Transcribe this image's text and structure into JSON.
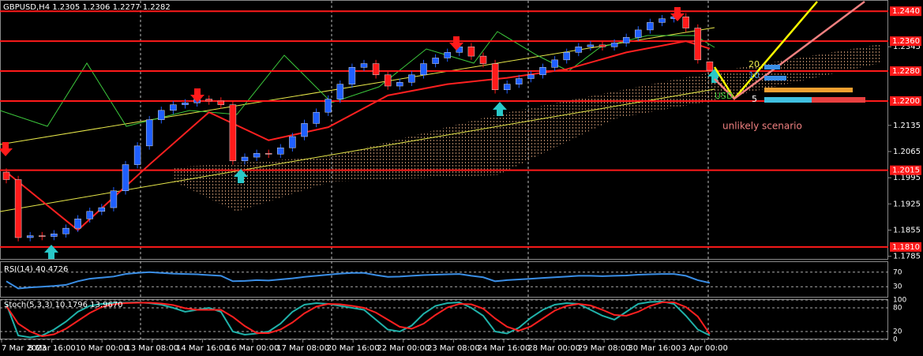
{
  "chart_data": [
    {
      "type": "candlestick",
      "title": "GBPUSD,H4  1.2305 1.2306 1.2277 1.2282",
      "open": [
        1.201,
        1.199,
        1.1835,
        1.184,
        1.1838,
        1.1845,
        1.186,
        1.1885,
        1.1905,
        1.1915,
        1.196,
        1.203,
        1.208,
        1.215,
        1.2175,
        1.219,
        1.2195,
        1.2205,
        1.22,
        1.219,
        1.204,
        1.205,
        1.206,
        1.2058,
        1.2075,
        1.2105,
        1.214,
        1.217,
        1.2205,
        1.2245,
        1.229,
        1.23,
        1.227,
        1.224,
        1.225,
        1.227,
        1.23,
        1.2315,
        1.233,
        1.2345,
        1.232,
        1.23,
        1.223,
        1.2245,
        1.226,
        1.227,
        1.229,
        1.231,
        1.233,
        1.2345,
        1.235,
        1.2345,
        1.2355,
        1.237,
        1.239,
        1.241,
        1.242,
        1.2425,
        1.2395,
        1.2305
      ],
      "high": [
        1.202,
        1.2,
        1.185,
        1.185,
        1.1855,
        1.187,
        1.1895,
        1.1915,
        1.1925,
        1.197,
        1.204,
        1.209,
        1.216,
        1.2185,
        1.22,
        1.2205,
        1.2215,
        1.2215,
        1.221,
        1.22,
        1.206,
        1.207,
        1.207,
        1.2085,
        1.2115,
        1.215,
        1.218,
        1.2215,
        1.2255,
        1.23,
        1.231,
        1.231,
        1.228,
        1.226,
        1.228,
        1.231,
        1.2325,
        1.234,
        1.2355,
        1.2355,
        1.233,
        1.231,
        1.2255,
        1.227,
        1.228,
        1.23,
        1.232,
        1.234,
        1.2355,
        1.236,
        1.236,
        1.2365,
        1.238,
        1.24,
        1.242,
        1.243,
        1.2435,
        1.2435,
        1.2405,
        1.2306
      ],
      "low": [
        1.198,
        1.1825,
        1.1825,
        1.1828,
        1.1828,
        1.1835,
        1.185,
        1.1875,
        1.1895,
        1.1905,
        1.195,
        1.202,
        1.207,
        1.214,
        1.2165,
        1.218,
        1.2185,
        1.219,
        1.218,
        1.203,
        1.203,
        1.204,
        1.2048,
        1.2048,
        1.2065,
        1.2095,
        1.213,
        1.216,
        1.2195,
        1.2235,
        1.228,
        1.226,
        1.223,
        1.223,
        1.224,
        1.226,
        1.229,
        1.2305,
        1.232,
        1.231,
        1.229,
        1.222,
        1.222,
        1.2235,
        1.225,
        1.226,
        1.228,
        1.23,
        1.232,
        1.2335,
        1.2335,
        1.2335,
        1.2345,
        1.236,
        1.238,
        1.24,
        1.241,
        1.2385,
        1.23,
        1.2277
      ],
      "close": [
        1.199,
        1.1835,
        1.184,
        1.1838,
        1.1845,
        1.186,
        1.1885,
        1.1905,
        1.1915,
        1.196,
        1.203,
        1.208,
        1.215,
        1.2175,
        1.219,
        1.2195,
        1.2205,
        1.22,
        1.219,
        1.204,
        1.205,
        1.206,
        1.2058,
        1.2075,
        1.2105,
        1.214,
        1.217,
        1.2205,
        1.2245,
        1.229,
        1.23,
        1.227,
        1.224,
        1.225,
        1.227,
        1.23,
        1.2315,
        1.233,
        1.2345,
        1.232,
        1.23,
        1.223,
        1.2245,
        1.226,
        1.227,
        1.229,
        1.231,
        1.233,
        1.2345,
        1.235,
        1.2345,
        1.2355,
        1.237,
        1.239,
        1.241,
        1.242,
        1.2425,
        1.2395,
        1.231,
        1.2282
      ],
      "up_color": "#1f5fff",
      "down_color": "#ff1a1a",
      "lines": [
        {
          "color": "#ff2020",
          "x": [
            0,
            6,
            12,
            17,
            22,
            27,
            32,
            37,
            42,
            47,
            52,
            57,
            59
          ],
          "values": [
            1.201,
            1.1855,
            1.203,
            1.217,
            1.2095,
            1.213,
            1.2215,
            1.2245,
            1.2262,
            1.2285,
            1.233,
            1.236,
            1.234
          ]
        }
      ],
      "ylim": [
        1.1778,
        1.247
      ],
      "yticks": [
        1.2345,
        1.2135,
        1.2065,
        1.1995,
        1.1925,
        1.1855,
        1.1785
      ],
      "levels": [
        {
          "value": 1.244,
          "label": "1.2440"
        },
        {
          "value": 1.236,
          "label": "1.2360"
        },
        {
          "value": 1.228,
          "label": "1.2280"
        },
        {
          "value": 1.22,
          "label": "1.2200"
        },
        1.2015,
        {
          "value": 1.181,
          "label": "1.1810"
        }
      ],
      "level_color": "#ff1a1a",
      "annotation": "unlikely scenario",
      "indicator_labels": [
        "20",
        "10",
        "USD",
        "5"
      ],
      "time_labels": [
        "7 Mar 2023",
        "8 Mar 16:00",
        "10 Mar 00:00",
        "13 Mar 08:00",
        "14 Mar 16:00",
        "16 Mar 00:00",
        "17 Mar 08:00",
        "20 Mar 16:00",
        "22 Mar 00:00",
        "23 Mar 08:00",
        "24 Mar 16:00",
        "28 Mar 00:00",
        "29 Mar 08:00",
        "30 Mar 16:00",
        "3 Apr 00:00"
      ]
    },
    {
      "type": "line",
      "title": "RSI(14) 40.4726",
      "series": [
        {
          "color": "#3a8ee6",
          "values": [
            45,
            25,
            28,
            30,
            32,
            35,
            45,
            52,
            55,
            58,
            65,
            68,
            70,
            68,
            66,
            65,
            64,
            62,
            60,
            45,
            46,
            48,
            47,
            50,
            53,
            57,
            60,
            63,
            66,
            68,
            68,
            62,
            57,
            58,
            60,
            62,
            63,
            64,
            65,
            60,
            56,
            45,
            48,
            50,
            52,
            54,
            56,
            58,
            60,
            60,
            59,
            60,
            61,
            63,
            64,
            65,
            65,
            60,
            48,
            40.4726
          ]
        }
      ],
      "ylim": [
        0,
        100
      ],
      "yticks": [
        70,
        30
      ]
    },
    {
      "type": "line",
      "title": "Stoch(5,3,3) 10.1796 13.9670",
      "series": [
        {
          "color": "#20b2aa",
          "values": [
            90,
            10,
            5,
            10,
            25,
            45,
            70,
            85,
            90,
            92,
            93,
            94,
            92,
            88,
            80,
            70,
            75,
            80,
            70,
            20,
            12,
            15,
            20,
            40,
            70,
            88,
            92,
            90,
            85,
            80,
            75,
            50,
            25,
            20,
            35,
            65,
            85,
            92,
            94,
            80,
            60,
            20,
            15,
            30,
            55,
            75,
            88,
            92,
            90,
            75,
            60,
            50,
            70,
            90,
            95,
            96,
            90,
            60,
            25,
            10.1796
          ]
        },
        {
          "color": "#ff2020",
          "values": [
            85,
            40,
            20,
            8,
            13,
            27,
            47,
            67,
            82,
            89,
            92,
            93,
            93,
            91,
            87,
            79,
            75,
            75,
            75,
            57,
            34,
            16,
            16,
            25,
            43,
            66,
            83,
            90,
            89,
            85,
            80,
            68,
            50,
            32,
            27,
            40,
            62,
            81,
            90,
            89,
            78,
            53,
            32,
            22,
            33,
            53,
            73,
            85,
            90,
            86,
            75,
            62,
            60,
            70,
            85,
            94,
            94,
            82,
            58,
            13.967
          ]
        }
      ],
      "ylim": [
        0,
        100
      ],
      "yticks": [
        100,
        80,
        20,
        0
      ]
    }
  ]
}
